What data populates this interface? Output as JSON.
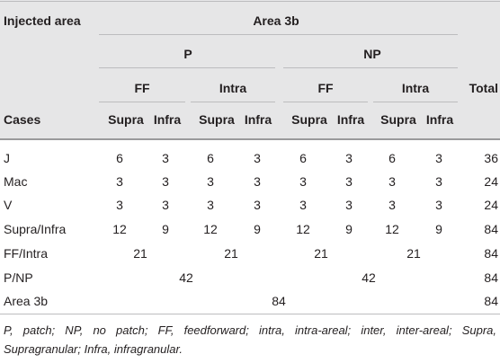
{
  "header": {
    "injected_area": "Injected area",
    "area": "Area 3b",
    "p": "P",
    "np": "NP",
    "ff_p": "FF",
    "intra_p": "Intra",
    "ff_np": "FF",
    "intra_np": "Intra",
    "total": "Total",
    "cases": "Cases",
    "supra": "Supra",
    "infra": "Infra"
  },
  "rows": [
    {
      "label": "J",
      "cells": [
        "6",
        "3",
        "6",
        "3",
        "6",
        "3",
        "6",
        "3"
      ],
      "total": "36"
    },
    {
      "label": "Mac",
      "cells": [
        "3",
        "3",
        "3",
        "3",
        "3",
        "3",
        "3",
        "3"
      ],
      "total": "24"
    },
    {
      "label": "V",
      "cells": [
        "3",
        "3",
        "3",
        "3",
        "3",
        "3",
        "3",
        "3"
      ],
      "total": "24"
    },
    {
      "label": "Supra/Infra",
      "cells": [
        "12",
        "9",
        "12",
        "9",
        "12",
        "9",
        "12",
        "9"
      ],
      "total": "84"
    },
    {
      "label": "FF/Intra",
      "cells": [
        "21",
        "21",
        "21",
        "21"
      ],
      "total": "84"
    },
    {
      "label": "P/NP",
      "cells": [
        "42",
        "42"
      ],
      "total": "84"
    },
    {
      "label": "Area 3b",
      "cells": [
        "84"
      ],
      "total": "84"
    }
  ],
  "footnote": "P, patch; NP, no patch; FF, feedforward; intra, intra-areal; inter, inter-areal; Supra, Supragranular; Infra, infragranular."
}
